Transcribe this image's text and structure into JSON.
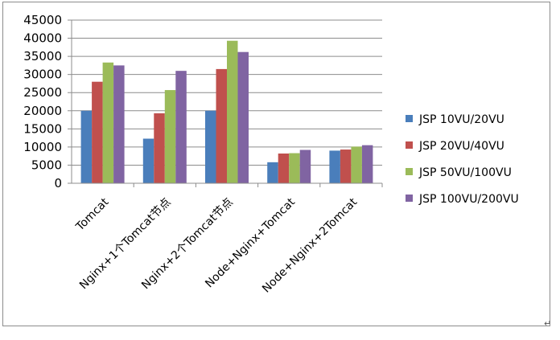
{
  "chart_data": {
    "type": "bar",
    "categories": [
      "Tomcat",
      "Nginx+1个Tomcat节点",
      "Nginx+2个Tomcat节点",
      "Node+Nginx+Tomcat",
      "Node+Nginx+2Tomcat"
    ],
    "series": [
      {
        "name": "JSP 10VU/20VU",
        "color": "#4a7ebb",
        "values": [
          20000,
          12300,
          20000,
          5800,
          9000
        ]
      },
      {
        "name": "JSP 20VU/40VU",
        "color": "#c0504d",
        "values": [
          28000,
          19300,
          31500,
          8200,
          9300
        ]
      },
      {
        "name": "JSP 50VU/100VU",
        "color": "#9bbb59",
        "values": [
          33300,
          25700,
          39300,
          8300,
          10100
        ]
      },
      {
        "name": "JSP 100VU/200VU",
        "color": "#8064a2",
        "values": [
          32500,
          31000,
          36200,
          9200,
          10500
        ]
      }
    ],
    "yticks": [
      "0",
      "5000",
      "10000",
      "15000",
      "20000",
      "25000",
      "30000",
      "35000",
      "40000",
      "45000"
    ],
    "ylim": [
      0,
      45000
    ],
    "grid": true,
    "legend_position": "right",
    "title": "",
    "xlabel": "",
    "ylabel": ""
  },
  "page": {
    "paragraph_mark": "↵"
  }
}
